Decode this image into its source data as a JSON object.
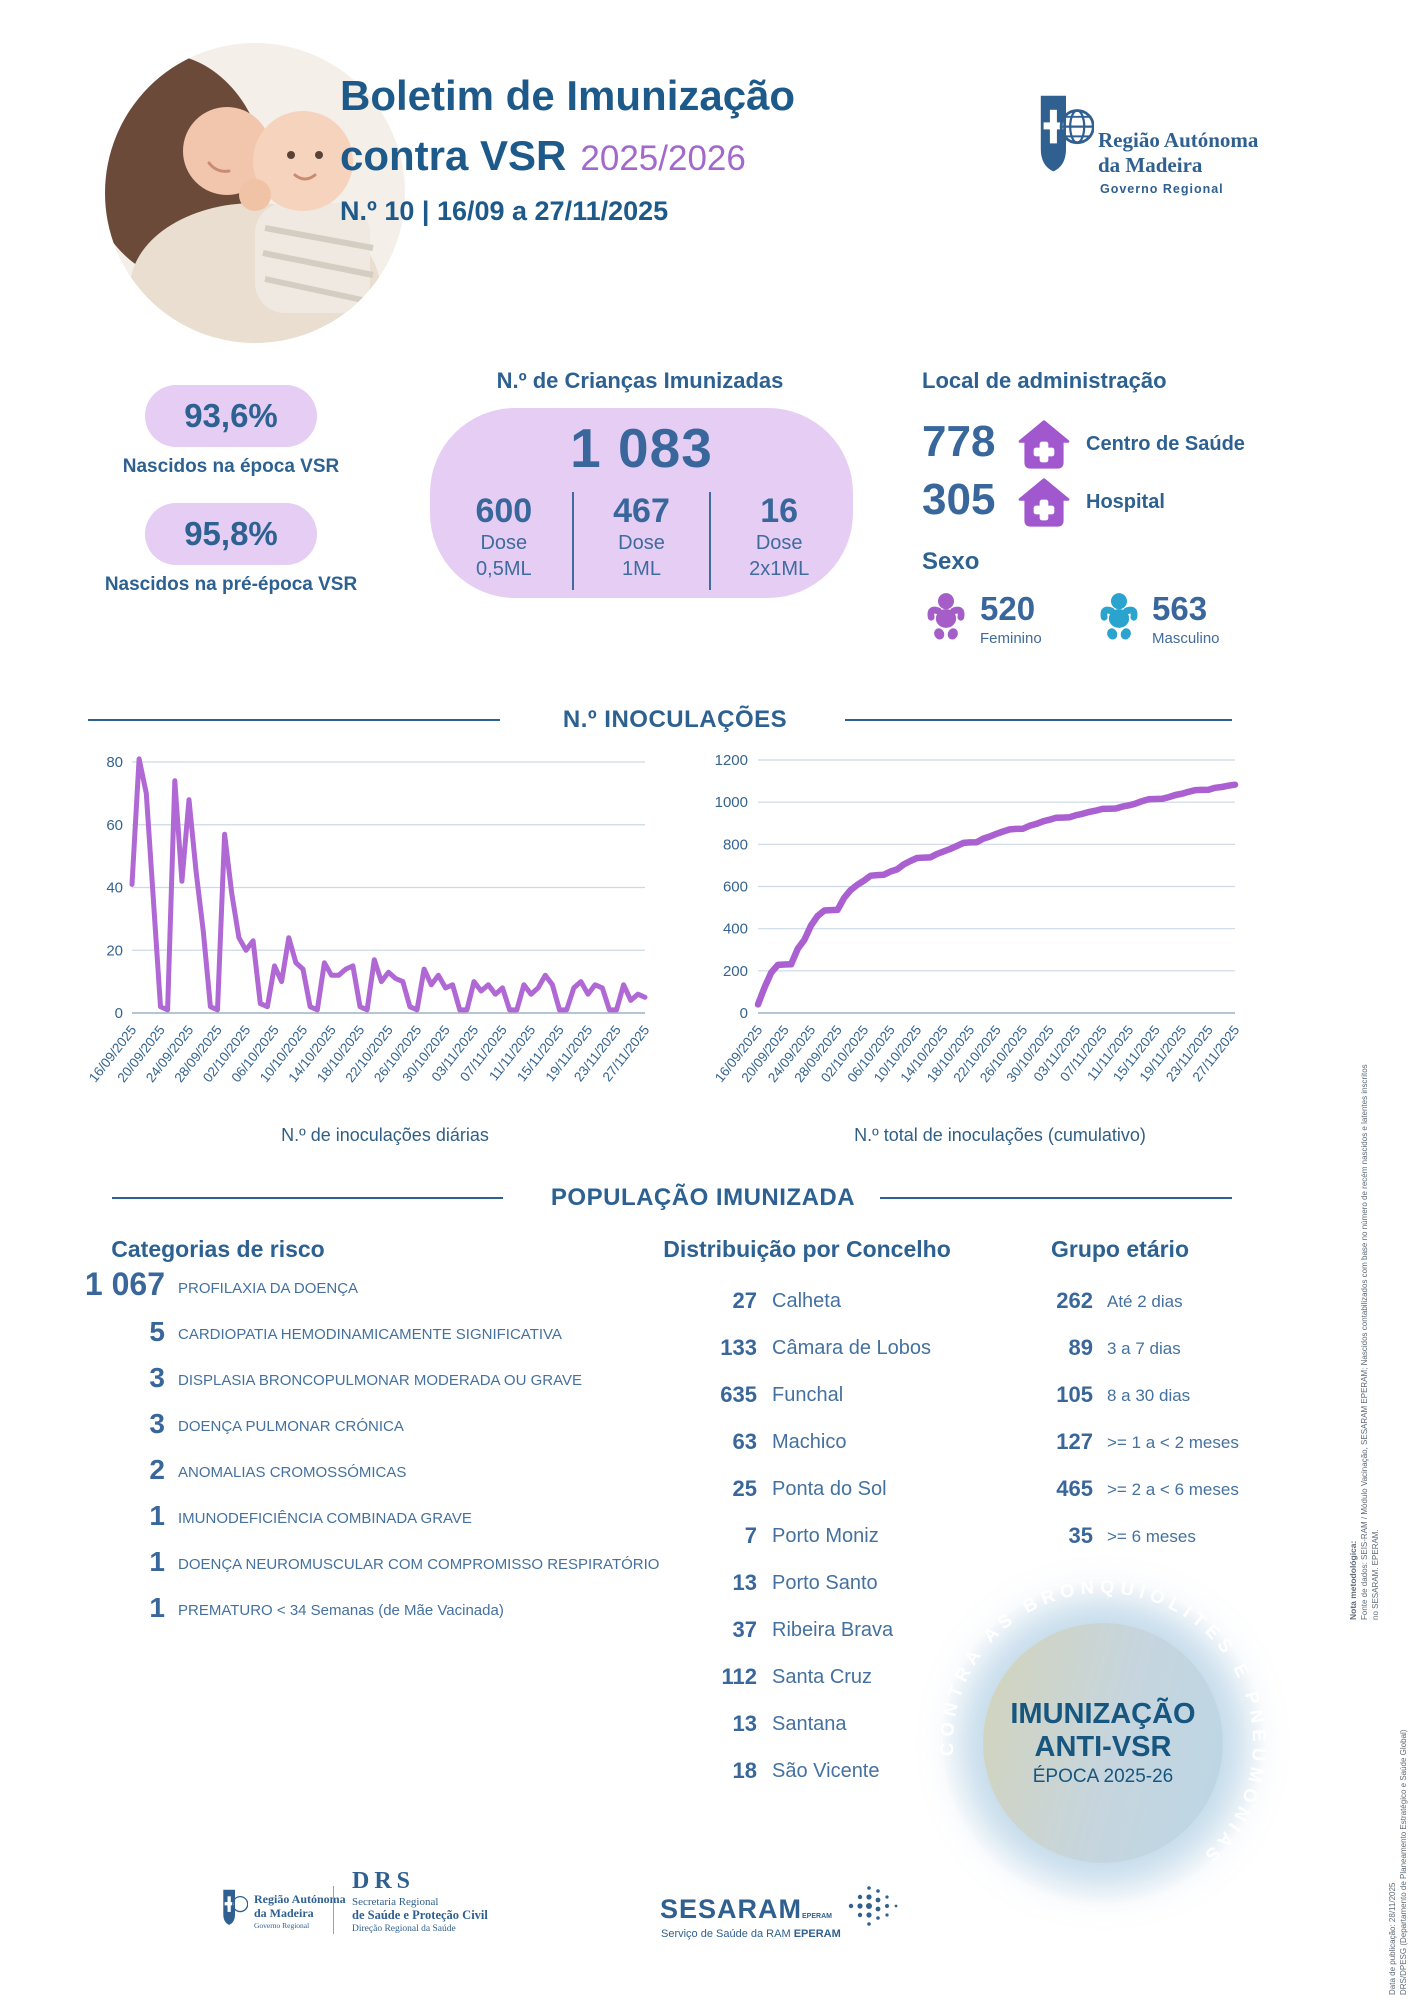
{
  "header": {
    "title_line1": "Boletim de Imunização",
    "title_line2": "contra VSR",
    "season": "2025/2026",
    "edition": "N.º 10 | 16/09 a 27/11/2025",
    "logo": {
      "line1": "Região Autónoma",
      "line2": "da Madeira",
      "line3": "Governo Regional"
    }
  },
  "coverage": {
    "items": [
      {
        "value": "93,6%",
        "label": "Nascidos na época VSR"
      },
      {
        "value": "95,8%",
        "label": "Nascidos na pré-época VSR"
      }
    ]
  },
  "immunized": {
    "heading": "N.º de Crianças Imunizadas",
    "total": "1 083",
    "doses": [
      {
        "value": "600",
        "label1": "Dose",
        "label2": "0,5ML"
      },
      {
        "value": "467",
        "label1": "Dose",
        "label2": "1ML"
      },
      {
        "value": "16",
        "label1": "Dose",
        "label2": "2x1ML"
      }
    ]
  },
  "administration": {
    "heading": "Local de administração",
    "items": [
      {
        "value": "778",
        "label": "Centro de Saúde"
      },
      {
        "value": "305",
        "label": "Hospital"
      }
    ],
    "sex": {
      "heading": "Sexo",
      "items": [
        {
          "value": "520",
          "label": "Feminino"
        },
        {
          "value": "563",
          "label": "Masculino"
        }
      ]
    }
  },
  "sections": {
    "inoculations_title": "N.º INOCULAÇÕES",
    "population_title": "POPULAÇÃO IMUNIZADA"
  },
  "chart_data": [
    {
      "type": "line",
      "title": "N.º de inoculações diárias",
      "line_color": "#b068d4",
      "ylim": [
        0,
        80
      ],
      "yticks": [
        0,
        20,
        40,
        60,
        80
      ],
      "x_tick_labels": [
        "16/09/2025",
        "20/09/2025",
        "24/09/2025",
        "28/09/2025",
        "02/10/2025",
        "06/10/2025",
        "10/10/2025",
        "14/10/2025",
        "18/10/2025",
        "22/10/2025",
        "26/10/2025",
        "30/10/2025",
        "03/11/2025",
        "07/11/2025",
        "11/11/2025",
        "15/11/2025",
        "19/11/2025",
        "23/11/2025",
        "27/11/2025"
      ],
      "values": [
        41,
        81,
        70,
        36,
        2,
        1,
        74,
        42,
        68,
        45,
        26,
        2,
        1,
        57,
        38,
        24,
        20,
        23,
        3,
        2,
        15,
        10,
        24,
        16,
        14,
        2,
        1,
        16,
        12,
        12,
        14,
        15,
        2,
        1,
        17,
        10,
        13,
        11,
        10,
        2,
        1,
        14,
        9,
        12,
        8,
        9,
        1,
        1,
        10,
        7,
        9,
        6,
        8,
        1,
        1,
        9,
        6,
        8,
        12,
        9,
        1,
        1,
        8,
        10,
        6,
        9,
        8,
        1,
        1,
        9,
        4,
        6,
        5
      ]
    },
    {
      "type": "line",
      "title": "N.º total de inoculações (cumulativo)",
      "line_color": "#aa60d0",
      "ylim": [
        0,
        1200
      ],
      "yticks": [
        0,
        200,
        400,
        600,
        800,
        1000,
        1200
      ],
      "x_tick_labels": [
        "16/09/2025",
        "20/09/2025",
        "24/09/2025",
        "28/09/2025",
        "02/10/2025",
        "06/10/2025",
        "10/10/2025",
        "14/10/2025",
        "18/10/2025",
        "22/10/2025",
        "26/10/2025",
        "30/10/2025",
        "03/11/2025",
        "07/11/2025",
        "11/11/2025",
        "15/11/2025",
        "19/11/2025",
        "23/11/2025",
        "27/11/2025"
      ],
      "values": [
        41,
        122,
        192,
        228,
        230,
        231,
        305,
        347,
        415,
        460,
        486,
        488,
        489,
        546,
        584,
        608,
        628,
        651,
        654,
        656,
        671,
        681,
        705,
        721,
        735,
        737,
        738,
        754,
        766,
        778,
        792,
        807,
        809,
        810,
        827,
        837,
        850,
        861,
        871,
        873,
        874,
        888,
        897,
        909,
        917,
        926,
        927,
        928,
        938,
        945,
        954,
        960,
        968,
        969,
        970,
        979,
        985,
        993,
        1005,
        1014,
        1015,
        1016,
        1024,
        1034,
        1040,
        1049,
        1057,
        1058,
        1059,
        1068,
        1072,
        1078,
        1083
      ]
    }
  ],
  "risk": {
    "heading": "Categorias de risco",
    "items": [
      {
        "value": "1 067",
        "label": "PROFILAXIA DA DOENÇA"
      },
      {
        "value": "5",
        "label": "CARDIOPATIA HEMODINAMICAMENTE SIGNIFICATIVA"
      },
      {
        "value": "3",
        "label": "DISPLASIA BRONCOPULMONAR MODERADA OU GRAVE"
      },
      {
        "value": "3",
        "label": "DOENÇA PULMONAR CRÓNICA"
      },
      {
        "value": "2",
        "label": "ANOMALIAS CROMOSSÓMICAS"
      },
      {
        "value": "1",
        "label": "IMUNODEFICIÊNCIA COMBINADA GRAVE"
      },
      {
        "value": "1",
        "label": "DOENÇA NEUROMUSCULAR COM COMPROMISSO RESPIRATÓRIO"
      },
      {
        "value": "1",
        "label": "PREMATURO < 34 Semanas (de Mãe Vacinada)"
      }
    ]
  },
  "concelhos": {
    "heading": "Distribuição por Concelho",
    "items": [
      {
        "value": "27",
        "label": "Calheta"
      },
      {
        "value": "133",
        "label": "Câmara de Lobos"
      },
      {
        "value": "635",
        "label": "Funchal"
      },
      {
        "value": "63",
        "label": "Machico"
      },
      {
        "value": "25",
        "label": "Ponta do Sol"
      },
      {
        "value": "7",
        "label": "Porto Moniz"
      },
      {
        "value": "13",
        "label": "Porto Santo"
      },
      {
        "value": "37",
        "label": "Ribeira Brava"
      },
      {
        "value": "112",
        "label": "Santa Cruz"
      },
      {
        "value": "13",
        "label": "Santana"
      },
      {
        "value": "18",
        "label": "São Vicente"
      }
    ]
  },
  "age_groups": {
    "heading": "Grupo etário",
    "items": [
      {
        "value": "262",
        "label": "Até 2 dias"
      },
      {
        "value": "89",
        "label": "3 a 7 dias"
      },
      {
        "value": "105",
        "label": "8 a 30 dias"
      },
      {
        "value": "127",
        "label": ">= 1 a < 2 meses"
      },
      {
        "value": "465",
        "label": ">= 2 a < 6 meses"
      },
      {
        "value": "35",
        "label": ">= 6 meses"
      }
    ]
  },
  "badge": {
    "arc": "CONTRA AS BRONQUIOLITES E PNEUMONIAS",
    "line1": "IMUNIZAÇÃO",
    "line2": "ANTI-VSR",
    "line3": "ÉPOCA 2025-26"
  },
  "footer": {
    "ram": {
      "line1": "Região Autónoma",
      "line2": "da Madeira",
      "line3": "Governo Regional"
    },
    "drs": {
      "acronym": "DRS",
      "line1": "Secretaria Regional",
      "line2": "de Saúde e Proteção Civil",
      "line3": "Direção Regional da Saúde"
    },
    "sesaram": {
      "name": "SESARAM",
      "sup": "EPERAM",
      "caption": "Serviço de Saúde da RAM",
      "caption_bold": "EPERAM"
    }
  },
  "notes": {
    "methodology_title": "Nota metodológica:",
    "methodology": "Fonte de dados: SEIS-RAM / Módulo Vacinação, SESARAM EPERAM; Nascidos contabilizados com base no número de recém nascidos e latentes inscritos no SESARAM. EPERAM.",
    "publication": "Data de publicação: 28/11/2025",
    "department": "DRS/DPESG (Departamento de Planeamento Estratégico e Saúde Global)"
  },
  "colors": {
    "primary_blue": "#1d5a89",
    "number_blue": "#39679b",
    "lavender": "#e6cdf3",
    "purple_line": "#b068d4",
    "purple_icon": "#a157cd",
    "female_purple": "#a55ec8",
    "male_teal": "#2aa3cf"
  }
}
